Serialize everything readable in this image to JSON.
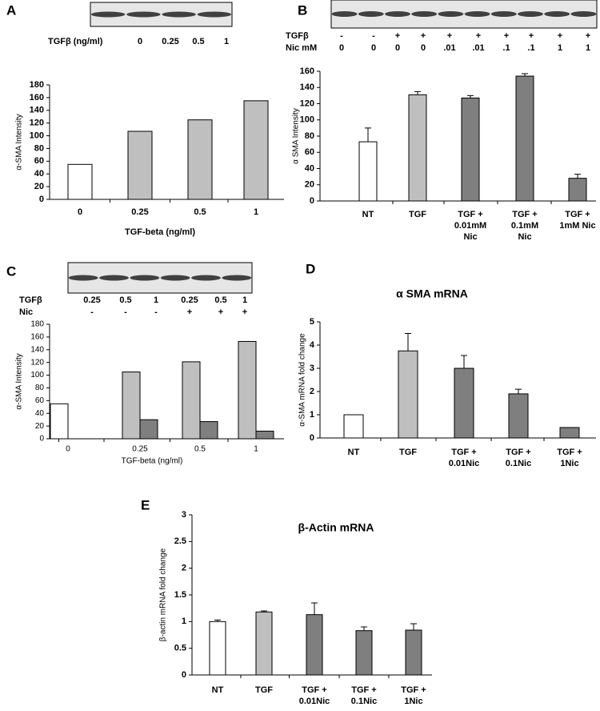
{
  "chart_data": [
    {
      "type": "bar",
      "panel_label": "A",
      "blot": [
        {
          "label": "TGFβ (ng/ml)",
          "lanes": [
            "0",
            "0.25",
            "0.5",
            "1"
          ]
        }
      ],
      "ylabel": "α-SMA Intensity",
      "xlabel": "TGF-beta (ng/ml)",
      "categories": [
        [
          "0"
        ],
        [
          "0.25"
        ],
        [
          "0.5"
        ],
        [
          "1"
        ]
      ],
      "values": [
        55,
        107,
        125,
        155
      ],
      "colors": [
        "#ffffff",
        "#bfbfbf",
        "#bfbfbf",
        "#bfbfbf"
      ],
      "ylim": [
        0,
        180
      ],
      "yticks": [
        0,
        20,
        40,
        60,
        80,
        100,
        120,
        140,
        160,
        180
      ]
    },
    {
      "type": "bar",
      "panel_label": "B",
      "blot": [
        {
          "label": "TGFβ",
          "lanes": [
            "-",
            "-",
            "+",
            "+",
            "+",
            "+",
            "+",
            "+",
            "+",
            "+"
          ]
        },
        {
          "label": "Nic mM",
          "lanes": [
            "0",
            "0",
            "0",
            "0",
            ".01",
            ".01",
            ".1",
            ".1",
            "1",
            "1"
          ]
        }
      ],
      "ylabel": "α SMA Intensity",
      "categories": [
        [
          "NT"
        ],
        [
          "TGF"
        ],
        [
          "TGF +",
          "0.01mM",
          "Nic"
        ],
        [
          "TGF +",
          "0.1mM",
          "Nic"
        ],
        [
          "TGF +",
          "1mM Nic"
        ]
      ],
      "values": [
        73,
        131,
        127,
        154,
        28
      ],
      "errors": [
        17,
        4,
        3,
        3,
        5
      ],
      "colors": [
        "#ffffff",
        "#bfbfbf",
        "#7f7f7f",
        "#7f7f7f",
        "#7f7f7f"
      ],
      "ylim": [
        0,
        160
      ],
      "yticks": [
        0,
        20,
        40,
        60,
        80,
        100,
        120,
        140,
        160
      ]
    },
    {
      "type": "grouped_bar",
      "panel_label": "C",
      "blot": [
        {
          "label": "TGFβ",
          "lanes": [
            "0.25",
            "0.5",
            "1",
            "0.25",
            "0.5",
            "1"
          ]
        },
        {
          "label": "Nic",
          "lanes": [
            "-",
            "-",
            "-",
            "+",
            "+",
            "+"
          ]
        }
      ],
      "ylabel": "α-SMA Intensity",
      "xlabel": "TGF-beta (ng/ml)",
      "categories": [
        [
          "0"
        ],
        [
          "0.25"
        ],
        [
          "0.5"
        ],
        [
          "1"
        ]
      ],
      "series": [
        {
          "values": [
            55,
            105,
            121,
            153
          ],
          "colors": [
            "#ffffff",
            "#bfbfbf",
            "#bfbfbf",
            "#bfbfbf"
          ]
        },
        {
          "values": [
            null,
            30,
            27,
            12
          ],
          "color": "#7f7f7f"
        }
      ],
      "ylim": [
        0,
        180
      ],
      "yticks": [
        0,
        20,
        40,
        60,
        80,
        100,
        120,
        140,
        160,
        180
      ]
    },
    {
      "type": "bar",
      "panel_label": "D",
      "title": "α SMA mRNA",
      "ylabel": "α-SMA mRNA fold change",
      "categories": [
        [
          "NT"
        ],
        [
          "TGF"
        ],
        [
          "TGF +",
          "0.01Nic"
        ],
        [
          "TGF +",
          "0.1Nic"
        ],
        [
          "TGF +",
          "1Nic"
        ]
      ],
      "values": [
        1.0,
        3.75,
        3.0,
        1.9,
        0.45
      ],
      "errors": [
        null,
        0.75,
        0.55,
        0.2,
        null
      ],
      "colors": [
        "#ffffff",
        "#bfbfbf",
        "#7f7f7f",
        "#7f7f7f",
        "#7f7f7f"
      ],
      "ylim": [
        0,
        5
      ],
      "yticks": [
        0,
        1,
        2,
        3,
        4,
        5
      ]
    },
    {
      "type": "bar",
      "panel_label": "E",
      "title": "β-Actin mRNA",
      "ylabel": "β-actin mRNA fold change",
      "categories": [
        [
          "NT"
        ],
        [
          "TGF"
        ],
        [
          "TGF +",
          "0.01Nic"
        ],
        [
          "TGF +",
          "0.1Nic"
        ],
        [
          "TGF +",
          "1Nic"
        ]
      ],
      "values": [
        1.0,
        1.18,
        1.13,
        0.83,
        0.84
      ],
      "errors": [
        0.03,
        0.02,
        0.22,
        0.07,
        0.12
      ],
      "colors": [
        "#ffffff",
        "#bfbfbf",
        "#7f7f7f",
        "#7f7f7f",
        "#7f7f7f"
      ],
      "ylim": [
        0,
        3
      ],
      "yticks": [
        0,
        0.5,
        1,
        1.5,
        2,
        2.5,
        3
      ]
    }
  ]
}
